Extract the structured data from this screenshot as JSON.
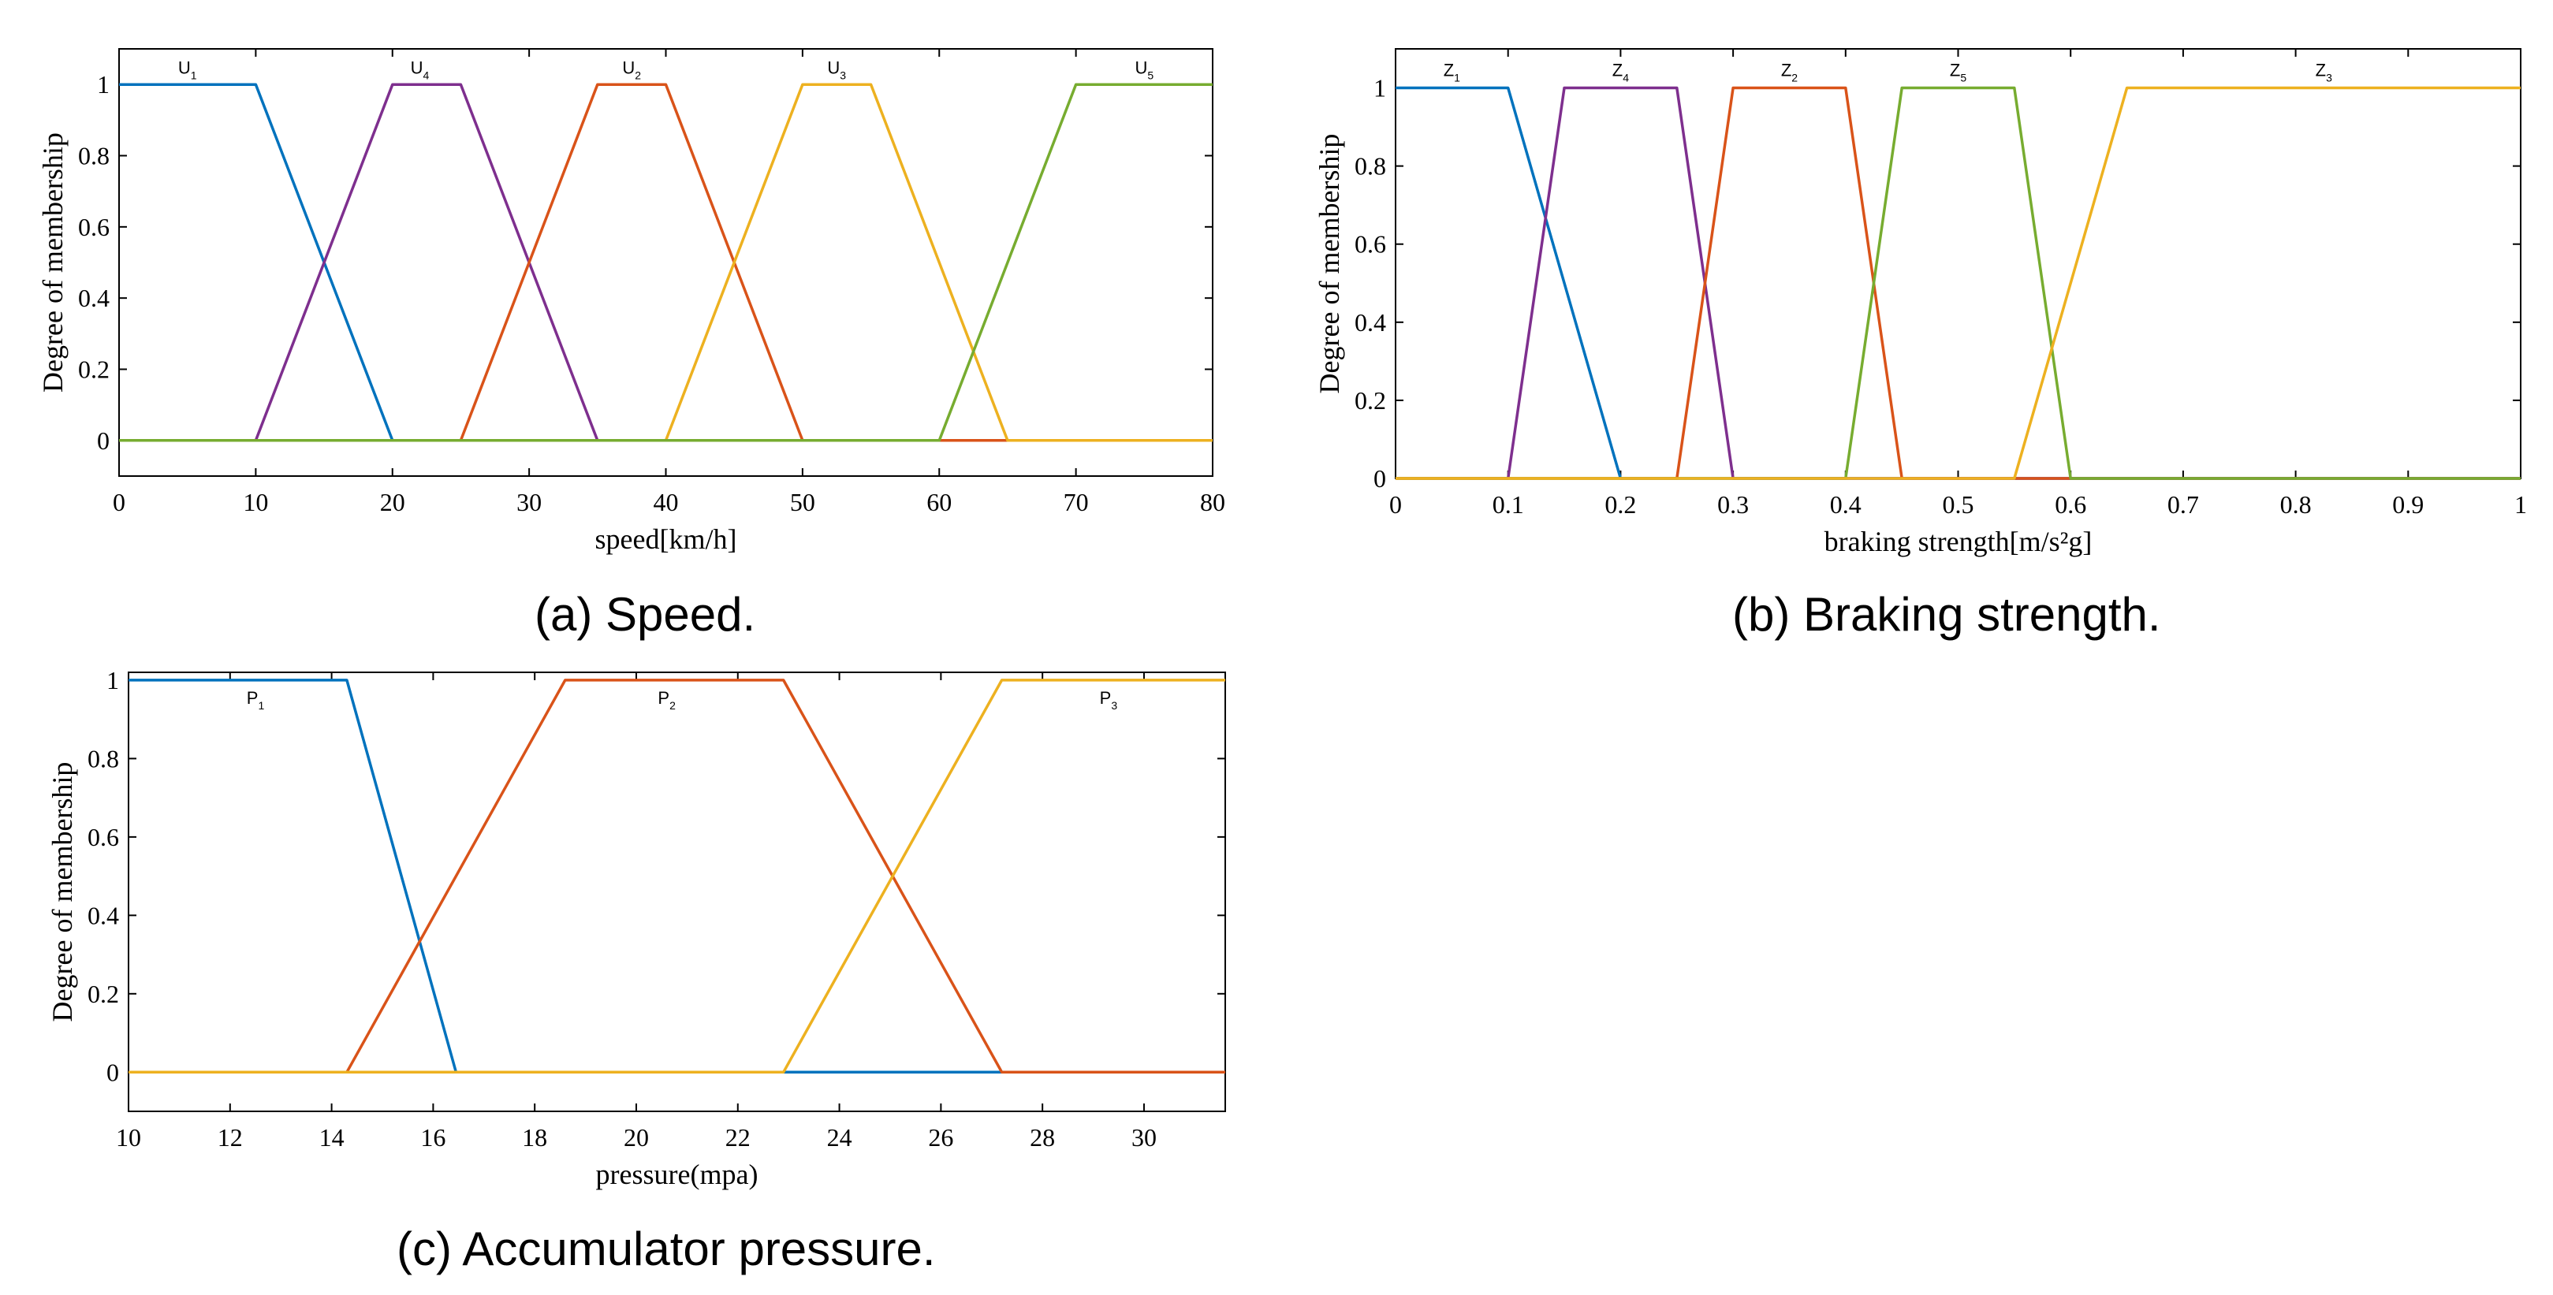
{
  "chart_data": [
    {
      "id": "speed",
      "type": "line",
      "caption": "(a) Speed.",
      "xlabel": "speed[km/h]",
      "ylabel": "Degree of membership",
      "xlim": [
        0,
        80
      ],
      "ylim": [
        -0.1,
        1.1
      ],
      "xticks": [
        0,
        10,
        20,
        30,
        40,
        50,
        60,
        70,
        80
      ],
      "xtick_labels": [
        "0",
        "10",
        "20",
        "30",
        "40",
        "50",
        "60",
        "70",
        "80"
      ],
      "yticks": [
        0,
        0.2,
        0.4,
        0.6,
        0.8,
        1
      ],
      "ytick_labels": [
        "0",
        "0.2",
        "0.4",
        "0.6",
        "0.8",
        "1"
      ],
      "series": [
        {
          "name": "U1",
          "label": "U",
          "sub": "1",
          "color": "#0072BD",
          "x": [
            0,
            10,
            20,
            80
          ],
          "y": [
            1,
            1,
            0,
            0
          ],
          "label_x": 5
        },
        {
          "name": "U4",
          "label": "U",
          "sub": "4",
          "color": "#7E2F8E",
          "x": [
            0,
            10,
            20,
            25,
            35,
            80
          ],
          "y": [
            0,
            0,
            1,
            1,
            0,
            0
          ],
          "label_x": 22
        },
        {
          "name": "U2",
          "label": "U",
          "sub": "2",
          "color": "#D95319",
          "x": [
            0,
            25,
            35,
            40,
            50,
            80
          ],
          "y": [
            0,
            0,
            1,
            1,
            0,
            0
          ],
          "label_x": 37.5
        },
        {
          "name": "U3",
          "label": "U",
          "sub": "3",
          "color": "#EDB120",
          "x": [
            0,
            40,
            50,
            55,
            65,
            80
          ],
          "y": [
            0,
            0,
            1,
            1,
            0,
            0
          ],
          "label_x": 52.5
        },
        {
          "name": "U5",
          "label": "U",
          "sub": "5",
          "color": "#77AC30",
          "x": [
            0,
            60,
            70,
            80
          ],
          "y": [
            0,
            0,
            1,
            1
          ],
          "label_x": 75
        }
      ]
    },
    {
      "id": "braking",
      "type": "line",
      "caption": "(b) Braking strength.",
      "xlabel": "braking strength[m/s²g]",
      "ylabel": "Degree of membership",
      "xlim": [
        0,
        1
      ],
      "ylim": [
        0,
        1.1
      ],
      "xticks": [
        0,
        0.1,
        0.2,
        0.3,
        0.4,
        0.5,
        0.6,
        0.7,
        0.8,
        0.9,
        1
      ],
      "xtick_labels": [
        "0",
        "0.1",
        "0.2",
        "0.3",
        "0.4",
        "0.5",
        "0.6",
        "0.7",
        "0.8",
        "0.9",
        "1"
      ],
      "yticks": [
        0,
        0.2,
        0.4,
        0.6,
        0.8,
        1
      ],
      "ytick_labels": [
        "0",
        "0.2",
        "0.4",
        "0.6",
        "0.8",
        "1"
      ],
      "series": [
        {
          "name": "Z1",
          "label": "Z",
          "sub": "1",
          "color": "#0072BD",
          "x": [
            0,
            0.1,
            0.2,
            1
          ],
          "y": [
            1,
            1,
            0,
            0
          ],
          "label_x": 0.05
        },
        {
          "name": "Z4",
          "label": "Z",
          "sub": "4",
          "color": "#7E2F8E",
          "x": [
            0,
            0.1,
            0.15,
            0.25,
            0.3,
            1
          ],
          "y": [
            0,
            0,
            1,
            1,
            0,
            0
          ],
          "label_x": 0.2
        },
        {
          "name": "Z2",
          "label": "Z",
          "sub": "2",
          "color": "#D95319",
          "x": [
            0,
            0.25,
            0.3,
            0.4,
            0.45,
            1
          ],
          "y": [
            0,
            0,
            1,
            1,
            0,
            0
          ],
          "label_x": 0.35
        },
        {
          "name": "Z5",
          "label": "Z",
          "sub": "5",
          "color": "#77AC30",
          "x": [
            0,
            0.4,
            0.45,
            0.55,
            0.6,
            1
          ],
          "y": [
            0,
            0,
            1,
            1,
            0,
            0
          ],
          "label_x": 0.5
        },
        {
          "name": "Z3",
          "label": "Z",
          "sub": "3",
          "color": "#EDB120",
          "x": [
            0,
            0.55,
            0.65,
            1
          ],
          "y": [
            0,
            0,
            1,
            1
          ],
          "label_x": 0.825
        }
      ]
    },
    {
      "id": "pressure",
      "type": "line",
      "caption": "(c) Accumulator pressure.",
      "xlabel": "pressure(mpa)",
      "ylabel": "Degree of membership",
      "xlim": [
        10,
        31.6
      ],
      "ylim": [
        -0.1,
        1.02
      ],
      "xticks": [
        10,
        12,
        14,
        16,
        18,
        20,
        22,
        24,
        26,
        28,
        30
      ],
      "xtick_labels": [
        "10",
        "12",
        "14",
        "16",
        "18",
        "20",
        "22",
        "24",
        "26",
        "28",
        "30"
      ],
      "yticks": [
        0,
        0.2,
        0.4,
        0.6,
        0.8,
        1
      ],
      "ytick_labels": [
        "0",
        "0.2",
        "0.4",
        "0.6",
        "0.8",
        "1"
      ],
      "series": [
        {
          "name": "P1",
          "label": "P",
          "sub": "1",
          "color": "#0072BD",
          "x": [
            10,
            14.3,
            16.45,
            31.6
          ],
          "y": [
            1,
            1,
            0,
            0
          ],
          "label_x": 12.5
        },
        {
          "name": "P2",
          "label": "P",
          "sub": "2",
          "color": "#D95319",
          "x": [
            10,
            14.3,
            18.6,
            22.9,
            27.2,
            31.6
          ],
          "y": [
            0,
            0,
            1,
            1,
            0,
            0
          ],
          "label_x": 20.6
        },
        {
          "name": "P3",
          "label": "P",
          "sub": "3",
          "color": "#EDB120",
          "x": [
            10,
            22.9,
            27.2,
            31.6
          ],
          "y": [
            0,
            0,
            1,
            1
          ],
          "label_x": 29.3
        }
      ]
    }
  ]
}
